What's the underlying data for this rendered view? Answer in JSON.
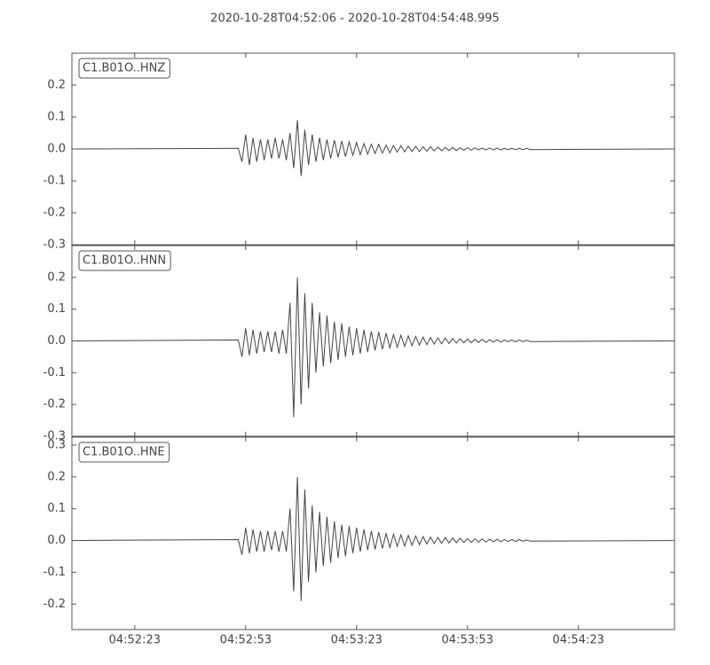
{
  "chart_data": [
    {
      "type": "line",
      "title": "2020-10-28T04:52:06  -  2020-10-28T04:54:48.995",
      "x": [
        "04:52:06",
        "04:52:51",
        "04:52:52",
        "04:52:53",
        "04:52:54",
        "04:52:55",
        "04:52:56",
        "04:52:57",
        "04:52:58",
        "04:52:59",
        "04:53:00",
        "04:53:01",
        "04:53:02",
        "04:53:03",
        "04:53:04",
        "04:53:05",
        "04:53:06",
        "04:53:07",
        "04:53:08",
        "04:53:09",
        "04:53:10",
        "04:53:11",
        "04:53:12",
        "04:53:13",
        "04:53:14",
        "04:53:15",
        "04:53:16",
        "04:53:17",
        "04:53:18",
        "04:53:19",
        "04:53:20",
        "04:53:21",
        "04:53:22",
        "04:53:23",
        "04:53:24",
        "04:53:25",
        "04:53:26",
        "04:53:27",
        "04:53:28",
        "04:53:29",
        "04:53:30",
        "04:53:31",
        "04:53:32",
        "04:53:33",
        "04:53:34",
        "04:53:35",
        "04:53:36",
        "04:53:37",
        "04:53:38",
        "04:53:39",
        "04:53:40",
        "04:53:41",
        "04:53:42",
        "04:53:43",
        "04:53:44",
        "04:53:45",
        "04:53:46",
        "04:53:47",
        "04:53:48",
        "04:53:49",
        "04:53:50",
        "04:53:51",
        "04:53:52",
        "04:53:53",
        "04:53:54",
        "04:53:55",
        "04:53:56",
        "04:53:57",
        "04:53:58",
        "04:53:59",
        "04:54:00",
        "04:54:01",
        "04:54:02",
        "04:54:03",
        "04:54:04",
        "04:54:05",
        "04:54:06",
        "04:54:07",
        "04:54:08",
        "04:54:09",
        "04:54:10",
        "04:54:48"
      ],
      "series": [
        {
          "name": "C1.B01O..HNZ",
          "color": "#444444",
          "values": [
            0,
            0.002,
            -0.04,
            0.045,
            -0.05,
            0.035,
            -0.04,
            0.03,
            -0.035,
            0.03,
            -0.03,
            0.035,
            -0.03,
            0.03,
            -0.035,
            0.05,
            -0.06,
            0.09,
            -0.085,
            0.06,
            -0.05,
            0.045,
            -0.04,
            0.035,
            -0.035,
            0.03,
            -0.03,
            0.028,
            -0.026,
            0.025,
            -0.024,
            0.022,
            -0.02,
            0.02,
            -0.018,
            0.017,
            -0.016,
            0.015,
            -0.014,
            0.014,
            -0.013,
            0.012,
            -0.012,
            0.011,
            -0.01,
            0.01,
            -0.009,
            0.009,
            -0.008,
            0.008,
            -0.008,
            0.007,
            -0.007,
            0.007,
            -0.006,
            0.006,
            -0.006,
            0.005,
            -0.005,
            0.005,
            -0.005,
            0.004,
            -0.004,
            0.004,
            -0.004,
            0.004,
            -0.003,
            0.003,
            -0.003,
            0.003,
            -0.003,
            0.003,
            -0.003,
            0.002,
            -0.002,
            0.002,
            -0.002,
            0.002,
            -0.002,
            0.002,
            -0.002,
            0
          ]
        }
      ],
      "ylim": [
        -0.3,
        0.3
      ],
      "yticks": [
        -0.3,
        -0.2,
        -0.1,
        {
          "value": 0,
          "label": "0.0"
        },
        0.1,
        0.2
      ]
    },
    {
      "type": "line",
      "x": [
        "04:52:06",
        "04:52:51",
        "04:52:52",
        "04:52:53",
        "04:52:54",
        "04:52:55",
        "04:52:56",
        "04:52:57",
        "04:52:58",
        "04:52:59",
        "04:53:00",
        "04:53:01",
        "04:53:02",
        "04:53:03",
        "04:53:04",
        "04:53:05",
        "04:53:06",
        "04:53:07",
        "04:53:08",
        "04:53:09",
        "04:53:10",
        "04:53:11",
        "04:53:12",
        "04:53:13",
        "04:53:14",
        "04:53:15",
        "04:53:16",
        "04:53:17",
        "04:53:18",
        "04:53:19",
        "04:53:20",
        "04:53:21",
        "04:53:22",
        "04:53:23",
        "04:53:24",
        "04:53:25",
        "04:53:26",
        "04:53:27",
        "04:53:28",
        "04:53:29",
        "04:53:30",
        "04:53:31",
        "04:53:32",
        "04:53:33",
        "04:53:34",
        "04:53:35",
        "04:53:36",
        "04:53:37",
        "04:53:38",
        "04:53:39",
        "04:53:40",
        "04:53:41",
        "04:53:42",
        "04:53:43",
        "04:53:44",
        "04:53:45",
        "04:53:46",
        "04:53:47",
        "04:53:48",
        "04:53:49",
        "04:53:50",
        "04:53:51",
        "04:53:52",
        "04:53:53",
        "04:53:54",
        "04:53:55",
        "04:53:56",
        "04:53:57",
        "04:53:58",
        "04:53:59",
        "04:54:00",
        "04:54:01",
        "04:54:02",
        "04:54:03",
        "04:54:04",
        "04:54:05",
        "04:54:06",
        "04:54:07",
        "04:54:08",
        "04:54:09",
        "04:54:10",
        "04:54:48"
      ],
      "series": [
        {
          "name": "C1.B01O..HNN",
          "color": "#444444",
          "values": [
            0,
            0.003,
            -0.05,
            0.04,
            -0.045,
            0.035,
            -0.04,
            0.03,
            -0.035,
            0.03,
            -0.035,
            0.03,
            -0.04,
            0.035,
            -0.04,
            0.12,
            -0.24,
            0.2,
            -0.2,
            0.15,
            -0.15,
            0.12,
            -0.1,
            0.09,
            -0.08,
            0.08,
            -0.07,
            0.06,
            -0.06,
            0.055,
            -0.05,
            0.045,
            -0.045,
            0.04,
            -0.04,
            0.035,
            -0.035,
            0.03,
            -0.03,
            0.028,
            -0.026,
            0.024,
            -0.022,
            0.02,
            -0.02,
            0.018,
            -0.017,
            0.016,
            -0.015,
            0.014,
            -0.013,
            0.012,
            -0.012,
            0.011,
            -0.01,
            0.01,
            -0.009,
            0.009,
            -0.008,
            0.008,
            -0.007,
            0.007,
            -0.006,
            0.006,
            -0.006,
            0.005,
            -0.005,
            0.005,
            -0.005,
            0.004,
            -0.004,
            0.004,
            -0.004,
            0.003,
            -0.003,
            0.003,
            -0.003,
            0.003,
            -0.002,
            0.002,
            -0.002,
            0
          ]
        }
      ],
      "ylim": [
        -0.3,
        0.3
      ],
      "yticks": [
        -0.3,
        -0.2,
        -0.1,
        {
          "value": 0,
          "label": "0.0"
        },
        0.1,
        0.2
      ]
    },
    {
      "type": "line",
      "x": [
        "04:52:06",
        "04:52:51",
        "04:52:52",
        "04:52:53",
        "04:52:54",
        "04:52:55",
        "04:52:56",
        "04:52:57",
        "04:52:58",
        "04:52:59",
        "04:53:00",
        "04:53:01",
        "04:53:02",
        "04:53:03",
        "04:53:04",
        "04:53:05",
        "04:53:06",
        "04:53:07",
        "04:53:08",
        "04:53:09",
        "04:53:10",
        "04:53:11",
        "04:53:12",
        "04:53:13",
        "04:53:14",
        "04:53:15",
        "04:53:16",
        "04:53:17",
        "04:53:18",
        "04:53:19",
        "04:53:20",
        "04:53:21",
        "04:53:22",
        "04:53:23",
        "04:53:24",
        "04:53:25",
        "04:53:26",
        "04:53:27",
        "04:53:28",
        "04:53:29",
        "04:53:30",
        "04:53:31",
        "04:53:32",
        "04:53:33",
        "04:53:34",
        "04:53:35",
        "04:53:36",
        "04:53:37",
        "04:53:38",
        "04:53:39",
        "04:53:40",
        "04:53:41",
        "04:53:42",
        "04:53:43",
        "04:53:44",
        "04:53:45",
        "04:53:46",
        "04:53:47",
        "04:53:48",
        "04:53:49",
        "04:53:50",
        "04:53:51",
        "04:53:52",
        "04:53:53",
        "04:53:54",
        "04:53:55",
        "04:53:56",
        "04:53:57",
        "04:53:58",
        "04:53:59",
        "04:54:00",
        "04:54:01",
        "04:54:02",
        "04:54:03",
        "04:54:04",
        "04:54:05",
        "04:54:06",
        "04:54:07",
        "04:54:08",
        "04:54:09",
        "04:54:10",
        "04:54:48"
      ],
      "series": [
        {
          "name": "C1.B01O..HNE",
          "color": "#444444",
          "values": [
            0,
            0.003,
            -0.045,
            0.04,
            -0.04,
            0.035,
            -0.035,
            0.03,
            -0.035,
            0.03,
            -0.03,
            0.03,
            -0.035,
            0.03,
            -0.035,
            0.1,
            -0.16,
            0.2,
            -0.19,
            0.16,
            -0.13,
            0.11,
            -0.1,
            0.09,
            -0.08,
            0.075,
            -0.07,
            0.06,
            -0.055,
            0.05,
            -0.05,
            0.045,
            -0.04,
            0.04,
            -0.035,
            0.035,
            -0.03,
            0.03,
            -0.028,
            0.026,
            -0.025,
            0.023,
            -0.022,
            0.02,
            -0.019,
            0.018,
            -0.017,
            0.016,
            -0.015,
            0.014,
            -0.013,
            0.012,
            -0.011,
            0.011,
            -0.01,
            0.01,
            -0.009,
            0.009,
            -0.008,
            0.008,
            -0.007,
            0.007,
            -0.006,
            0.006,
            -0.006,
            0.005,
            -0.005,
            0.005,
            -0.005,
            0.004,
            -0.004,
            0.004,
            -0.004,
            0.003,
            -0.003,
            0.003,
            -0.003,
            0.003,
            -0.002,
            0.002,
            -0.002,
            0
          ]
        }
      ],
      "xlim": [
        "04:52:06",
        "04:54:48.995"
      ],
      "xticks": [
        "04:52:23",
        "04:52:53",
        "04:53:23",
        "04:53:53",
        "04:54:23"
      ],
      "ylim": [
        -0.28,
        0.325
      ],
      "yticks": [
        -0.2,
        -0.1,
        {
          "value": 0,
          "label": "0.0"
        },
        0.1,
        0.2,
        0.3
      ]
    }
  ]
}
